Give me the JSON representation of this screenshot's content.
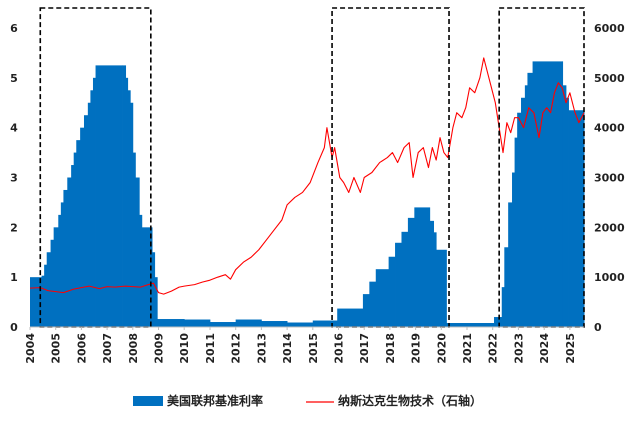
{
  "chart_data": {
    "type": "bar+line",
    "title": "",
    "x_axis": {
      "tick_labels": [
        "2004",
        "2005",
        "2006",
        "2007",
        "2008",
        "2009",
        "2010",
        "2011",
        "2012",
        "2013",
        "2014",
        "2015",
        "2016",
        "2017",
        "2018",
        "2019",
        "2020",
        "2021",
        "2022",
        "2023",
        "2024",
        "2025"
      ],
      "range": [
        2004.0,
        2025.55
      ]
    },
    "y_left": {
      "range": [
        0,
        6
      ],
      "ticks": [
        0,
        1,
        2,
        3,
        4,
        5,
        6
      ]
    },
    "y_right": {
      "range": [
        0,
        6000
      ],
      "ticks": [
        0,
        1000,
        2000,
        3000,
        4000,
        5000,
        6000
      ]
    },
    "grid": false,
    "legend_position": "bottom",
    "colors": {
      "bar": "#0070c0",
      "line": "#ff0000",
      "box": "#000000"
    },
    "series": [
      {
        "name": "美国联邦基准利率",
        "type": "bar",
        "axis": "left",
        "points": [
          [
            2004.0,
            1.0
          ],
          [
            2004.45,
            1.03
          ],
          [
            2004.55,
            1.25
          ],
          [
            2004.65,
            1.5
          ],
          [
            2004.8,
            1.75
          ],
          [
            2004.92,
            2.0
          ],
          [
            2005.1,
            2.25
          ],
          [
            2005.2,
            2.5
          ],
          [
            2005.3,
            2.75
          ],
          [
            2005.45,
            3.0
          ],
          [
            2005.6,
            3.25
          ],
          [
            2005.7,
            3.5
          ],
          [
            2005.8,
            3.75
          ],
          [
            2005.95,
            4.0
          ],
          [
            2006.1,
            4.25
          ],
          [
            2006.25,
            4.5
          ],
          [
            2006.35,
            4.75
          ],
          [
            2006.45,
            5.0
          ],
          [
            2006.55,
            5.25
          ],
          [
            2007.6,
            5.25
          ],
          [
            2007.72,
            5.0
          ],
          [
            2007.8,
            4.75
          ],
          [
            2007.9,
            4.5
          ],
          [
            2008.0,
            3.5
          ],
          [
            2008.1,
            3.0
          ],
          [
            2008.25,
            2.25
          ],
          [
            2008.35,
            2.0
          ],
          [
            2008.75,
            1.5
          ],
          [
            2008.85,
            1.0
          ],
          [
            2008.95,
            0.16
          ],
          [
            2010.0,
            0.15
          ],
          [
            2011.0,
            0.1
          ],
          [
            2012.0,
            0.15
          ],
          [
            2013.0,
            0.12
          ],
          [
            2014.0,
            0.09
          ],
          [
            2015.0,
            0.13
          ],
          [
            2015.95,
            0.37
          ],
          [
            2016.95,
            0.66
          ],
          [
            2017.2,
            0.91
          ],
          [
            2017.45,
            1.16
          ],
          [
            2017.95,
            1.41
          ],
          [
            2018.2,
            1.69
          ],
          [
            2018.45,
            1.91
          ],
          [
            2018.7,
            2.19
          ],
          [
            2018.95,
            2.4
          ],
          [
            2019.55,
            2.13
          ],
          [
            2019.7,
            1.9
          ],
          [
            2019.8,
            1.55
          ],
          [
            2020.2,
            0.08
          ],
          [
            2021.5,
            0.08
          ],
          [
            2022.05,
            0.2
          ],
          [
            2022.35,
            0.8
          ],
          [
            2022.45,
            1.6
          ],
          [
            2022.6,
            2.5
          ],
          [
            2022.75,
            3.1
          ],
          [
            2022.85,
            3.8
          ],
          [
            2022.95,
            4.3
          ],
          [
            2023.1,
            4.6
          ],
          [
            2023.25,
            4.85
          ],
          [
            2023.35,
            5.1
          ],
          [
            2023.55,
            5.33
          ],
          [
            2024.7,
            5.33
          ],
          [
            2024.72,
            4.85
          ],
          [
            2024.85,
            4.6
          ],
          [
            2024.95,
            4.35
          ],
          [
            2025.55,
            4.33
          ]
        ]
      },
      {
        "name": "纳斯达克生物技术（石轴）",
        "type": "line",
        "axis": "right",
        "points": [
          [
            2004.0,
            780
          ],
          [
            2004.4,
            790
          ],
          [
            2004.7,
            730
          ],
          [
            2005.0,
            710
          ],
          [
            2005.3,
            690
          ],
          [
            2005.7,
            760
          ],
          [
            2006.0,
            790
          ],
          [
            2006.3,
            820
          ],
          [
            2006.7,
            770
          ],
          [
            2007.0,
            810
          ],
          [
            2007.3,
            800
          ],
          [
            2007.7,
            820
          ],
          [
            2008.0,
            810
          ],
          [
            2008.3,
            800
          ],
          [
            2008.6,
            850
          ],
          [
            2008.8,
            880
          ],
          [
            2009.0,
            690
          ],
          [
            2009.2,
            660
          ],
          [
            2009.5,
            720
          ],
          [
            2009.8,
            800
          ],
          [
            2010.0,
            820
          ],
          [
            2010.4,
            850
          ],
          [
            2010.7,
            900
          ],
          [
            2011.0,
            940
          ],
          [
            2011.3,
            1000
          ],
          [
            2011.6,
            1050
          ],
          [
            2011.8,
            960
          ],
          [
            2012.0,
            1150
          ],
          [
            2012.3,
            1300
          ],
          [
            2012.6,
            1400
          ],
          [
            2012.9,
            1550
          ],
          [
            2013.2,
            1750
          ],
          [
            2013.5,
            1950
          ],
          [
            2013.8,
            2150
          ],
          [
            2014.0,
            2450
          ],
          [
            2014.3,
            2600
          ],
          [
            2014.6,
            2700
          ],
          [
            2014.9,
            2900
          ],
          [
            2015.2,
            3300
          ],
          [
            2015.45,
            3600
          ],
          [
            2015.55,
            4000
          ],
          [
            2015.75,
            3400
          ],
          [
            2015.85,
            3600
          ],
          [
            2016.05,
            3000
          ],
          [
            2016.2,
            2900
          ],
          [
            2016.4,
            2700
          ],
          [
            2016.6,
            3000
          ],
          [
            2016.85,
            2700
          ],
          [
            2017.0,
            3000
          ],
          [
            2017.3,
            3100
          ],
          [
            2017.6,
            3300
          ],
          [
            2017.9,
            3400
          ],
          [
            2018.1,
            3500
          ],
          [
            2018.3,
            3300
          ],
          [
            2018.55,
            3600
          ],
          [
            2018.75,
            3700
          ],
          [
            2018.9,
            3000
          ],
          [
            2019.1,
            3500
          ],
          [
            2019.3,
            3600
          ],
          [
            2019.5,
            3200
          ],
          [
            2019.65,
            3600
          ],
          [
            2019.8,
            3350
          ],
          [
            2019.95,
            3800
          ],
          [
            2020.1,
            3500
          ],
          [
            2020.25,
            3400
          ],
          [
            2020.45,
            4000
          ],
          [
            2020.6,
            4300
          ],
          [
            2020.8,
            4200
          ],
          [
            2020.95,
            4400
          ],
          [
            2021.1,
            4800
          ],
          [
            2021.3,
            4700
          ],
          [
            2021.5,
            5000
          ],
          [
            2021.65,
            5400
          ],
          [
            2021.8,
            5100
          ],
          [
            2021.95,
            4800
          ],
          [
            2022.1,
            4500
          ],
          [
            2022.25,
            4000
          ],
          [
            2022.4,
            3500
          ],
          [
            2022.55,
            4100
          ],
          [
            2022.7,
            3900
          ],
          [
            2022.85,
            4200
          ],
          [
            2023.0,
            4200
          ],
          [
            2023.2,
            4000
          ],
          [
            2023.4,
            4400
          ],
          [
            2023.6,
            4300
          ],
          [
            2023.8,
            3800
          ],
          [
            2023.95,
            4300
          ],
          [
            2024.1,
            4400
          ],
          [
            2024.25,
            4300
          ],
          [
            2024.4,
            4700
          ],
          [
            2024.55,
            4900
          ],
          [
            2024.7,
            4800
          ],
          [
            2024.85,
            4500
          ],
          [
            2025.0,
            4700
          ],
          [
            2025.2,
            4300
          ],
          [
            2025.35,
            4100
          ],
          [
            2025.55,
            4300
          ]
        ]
      }
    ],
    "highlight_boxes": [
      {
        "x": [
          2004.4,
          2008.7
        ]
      },
      {
        "x": [
          2015.75,
          2020.3
        ]
      },
      {
        "x": [
          2022.25,
          2025.55
        ]
      }
    ]
  }
}
